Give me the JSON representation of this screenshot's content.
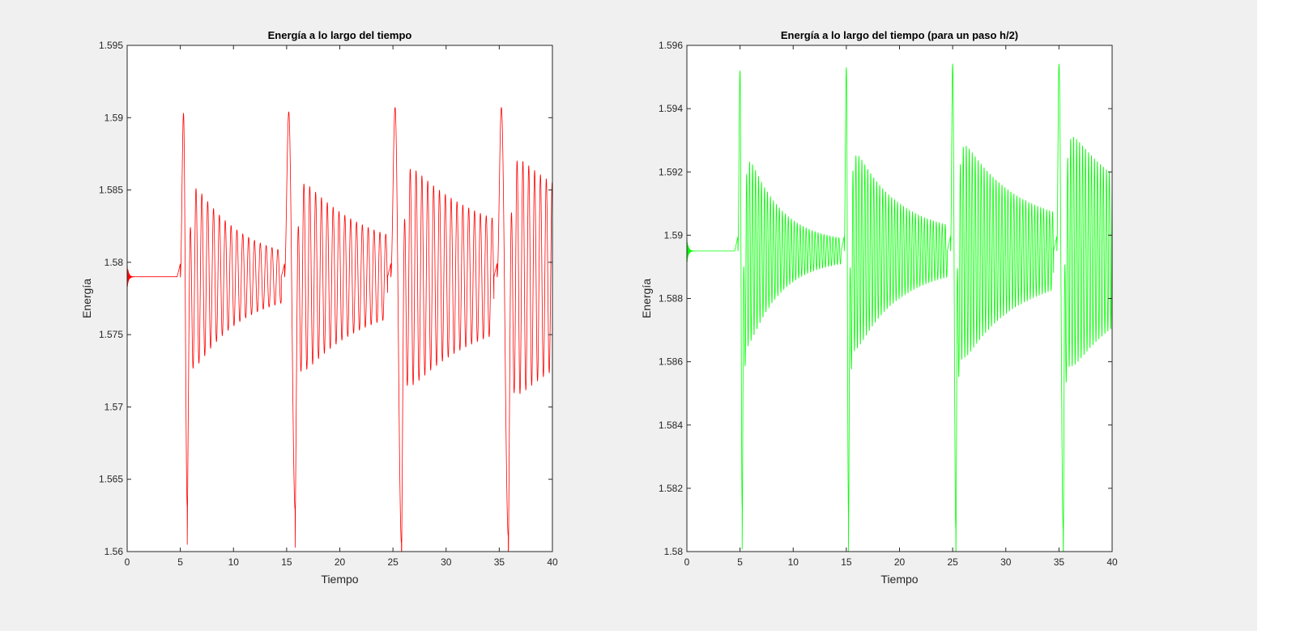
{
  "figure": {
    "background": "#f0f0f0"
  },
  "chart_data": [
    {
      "type": "line",
      "title": "Energía a lo largo del tiempo",
      "xlabel": "Tiempo",
      "ylabel": "Energía",
      "xlim": [
        0,
        40
      ],
      "ylim": [
        1.56,
        1.595
      ],
      "xticks": [
        0,
        5,
        10,
        15,
        20,
        25,
        30,
        35,
        40
      ],
      "xtick_labels": [
        "0",
        "5",
        "10",
        "15",
        "20",
        "25",
        "30",
        "35",
        "40"
      ],
      "yticks": [
        1.56,
        1.565,
        1.57,
        1.575,
        1.58,
        1.585,
        1.59,
        1.595
      ],
      "ytick_labels": [
        "1.56",
        "1.565",
        "1.57",
        "1.575",
        "1.58",
        "1.585",
        "1.59",
        "1.595"
      ],
      "grid": false,
      "series": [
        {
          "color": "#ff0000",
          "baseline": 1.579,
          "period": 0.55,
          "kicks": [
            {
              "t": 5.0,
              "dt_peak": 0.3,
              "dt_min": 0.35,
              "peak": 1.5903,
              "min": 1.5631,
              "amp": 0.0075,
              "tau": 4.5,
              "floor": 0.0009
            },
            {
              "t": 14.8,
              "dt_peak": 0.4,
              "dt_min": 0.6,
              "peak": 1.5904,
              "min": 1.5629,
              "amp": 0.0075,
              "tau": 6.0,
              "floor": 0.0015
            },
            {
              "t": 24.8,
              "dt_peak": 0.4,
              "dt_min": 0.6,
              "peak": 1.5907,
              "min": 1.5606,
              "amp": 0.0085,
              "tau": 7.0,
              "floor": 0.0022
            },
            {
              "t": 34.8,
              "dt_peak": 0.4,
              "dt_min": 0.65,
              "peak": 1.5907,
              "min": 1.5611,
              "amp": 0.009,
              "tau": 8.0,
              "floor": 0.0028
            }
          ]
        }
      ]
    },
    {
      "type": "line",
      "title": "Energía a lo largo del tiempo (para un paso h/2)",
      "xlabel": "Tiempo",
      "ylabel": "Energía",
      "xlim": [
        0,
        40
      ],
      "ylim": [
        1.58,
        1.596
      ],
      "xticks": [
        0,
        5,
        10,
        15,
        20,
        25,
        30,
        35,
        40
      ],
      "xtick_labels": [
        "0",
        "5",
        "10",
        "15",
        "20",
        "25",
        "30",
        "35",
        "40"
      ],
      "yticks": [
        1.58,
        1.582,
        1.584,
        1.586,
        1.588,
        1.59,
        1.592,
        1.594,
        1.596
      ],
      "ytick_labels": [
        "1.58",
        "1.582",
        "1.584",
        "1.586",
        "1.588",
        "1.59",
        "1.592",
        "1.594",
        "1.596"
      ],
      "grid": false,
      "series": [
        {
          "color": "#00ff00",
          "baseline": 1.5895,
          "period": 0.28,
          "kicks": [
            {
              "t": 4.8,
              "dt_peak": 0.2,
              "dt_min": 0.2,
              "peak": 1.5952,
              "min": 1.5814,
              "amp": 0.0038,
              "tau": 3.0,
              "floor": 0.00025
            },
            {
              "t": 14.8,
              "dt_peak": 0.2,
              "dt_min": 0.2,
              "peak": 1.5953,
              "min": 1.5812,
              "amp": 0.0038,
              "tau": 4.0,
              "floor": 0.0005
            },
            {
              "t": 24.8,
              "dt_peak": 0.2,
              "dt_min": 0.3,
              "peak": 1.5954,
              "min": 1.5807,
              "amp": 0.004,
              "tau": 5.0,
              "floor": 0.0007
            },
            {
              "t": 34.8,
              "dt_peak": 0.2,
              "dt_min": 0.4,
              "peak": 1.5954,
              "min": 1.5807,
              "amp": 0.0042,
              "tau": 6.0,
              "floor": 0.0009
            }
          ]
        }
      ]
    }
  ]
}
